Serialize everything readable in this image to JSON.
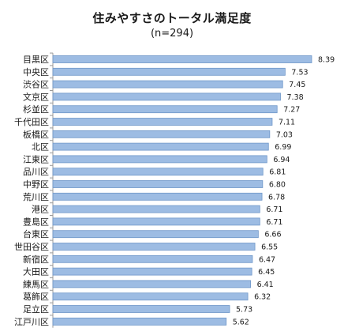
{
  "chart_data": {
    "type": "bar",
    "orientation": "horizontal",
    "title": "住みやすさのトータル満足度",
    "subtitle": "(n=294)",
    "categories": [
      "目黒区",
      "中央区",
      "渋谷区",
      "文京区",
      "杉並区",
      "千代田区",
      "板橋区",
      "北区",
      "江東区",
      "品川区",
      "中野区",
      "荒川区",
      "港区",
      "豊島区",
      "台東区",
      "世田谷区",
      "新宿区",
      "大田区",
      "練馬区",
      "葛飾区",
      "足立区",
      "江戸川区"
    ],
    "values": [
      8.39,
      7.53,
      7.45,
      7.38,
      7.27,
      7.11,
      7.03,
      6.99,
      6.94,
      6.81,
      6.8,
      6.78,
      6.71,
      6.71,
      6.66,
      6.55,
      6.47,
      6.45,
      6.41,
      6.32,
      5.73,
      5.62
    ],
    "value_labels": [
      "8.39",
      "7.53",
      "7.45",
      "7.38",
      "7.27",
      "7.11",
      "7.03",
      "6.99",
      "6.94",
      "6.81",
      "6.80",
      "6.78",
      "6.71",
      "6.71",
      "6.66",
      "6.55",
      "6.47",
      "6.45",
      "6.41",
      "6.32",
      "5.73",
      "5.62"
    ],
    "xlim": [
      0,
      8.5
    ],
    "grid": false,
    "legend": "none",
    "bar_color": "#9DBCE3",
    "bar_border_color": "#6F97C9"
  }
}
